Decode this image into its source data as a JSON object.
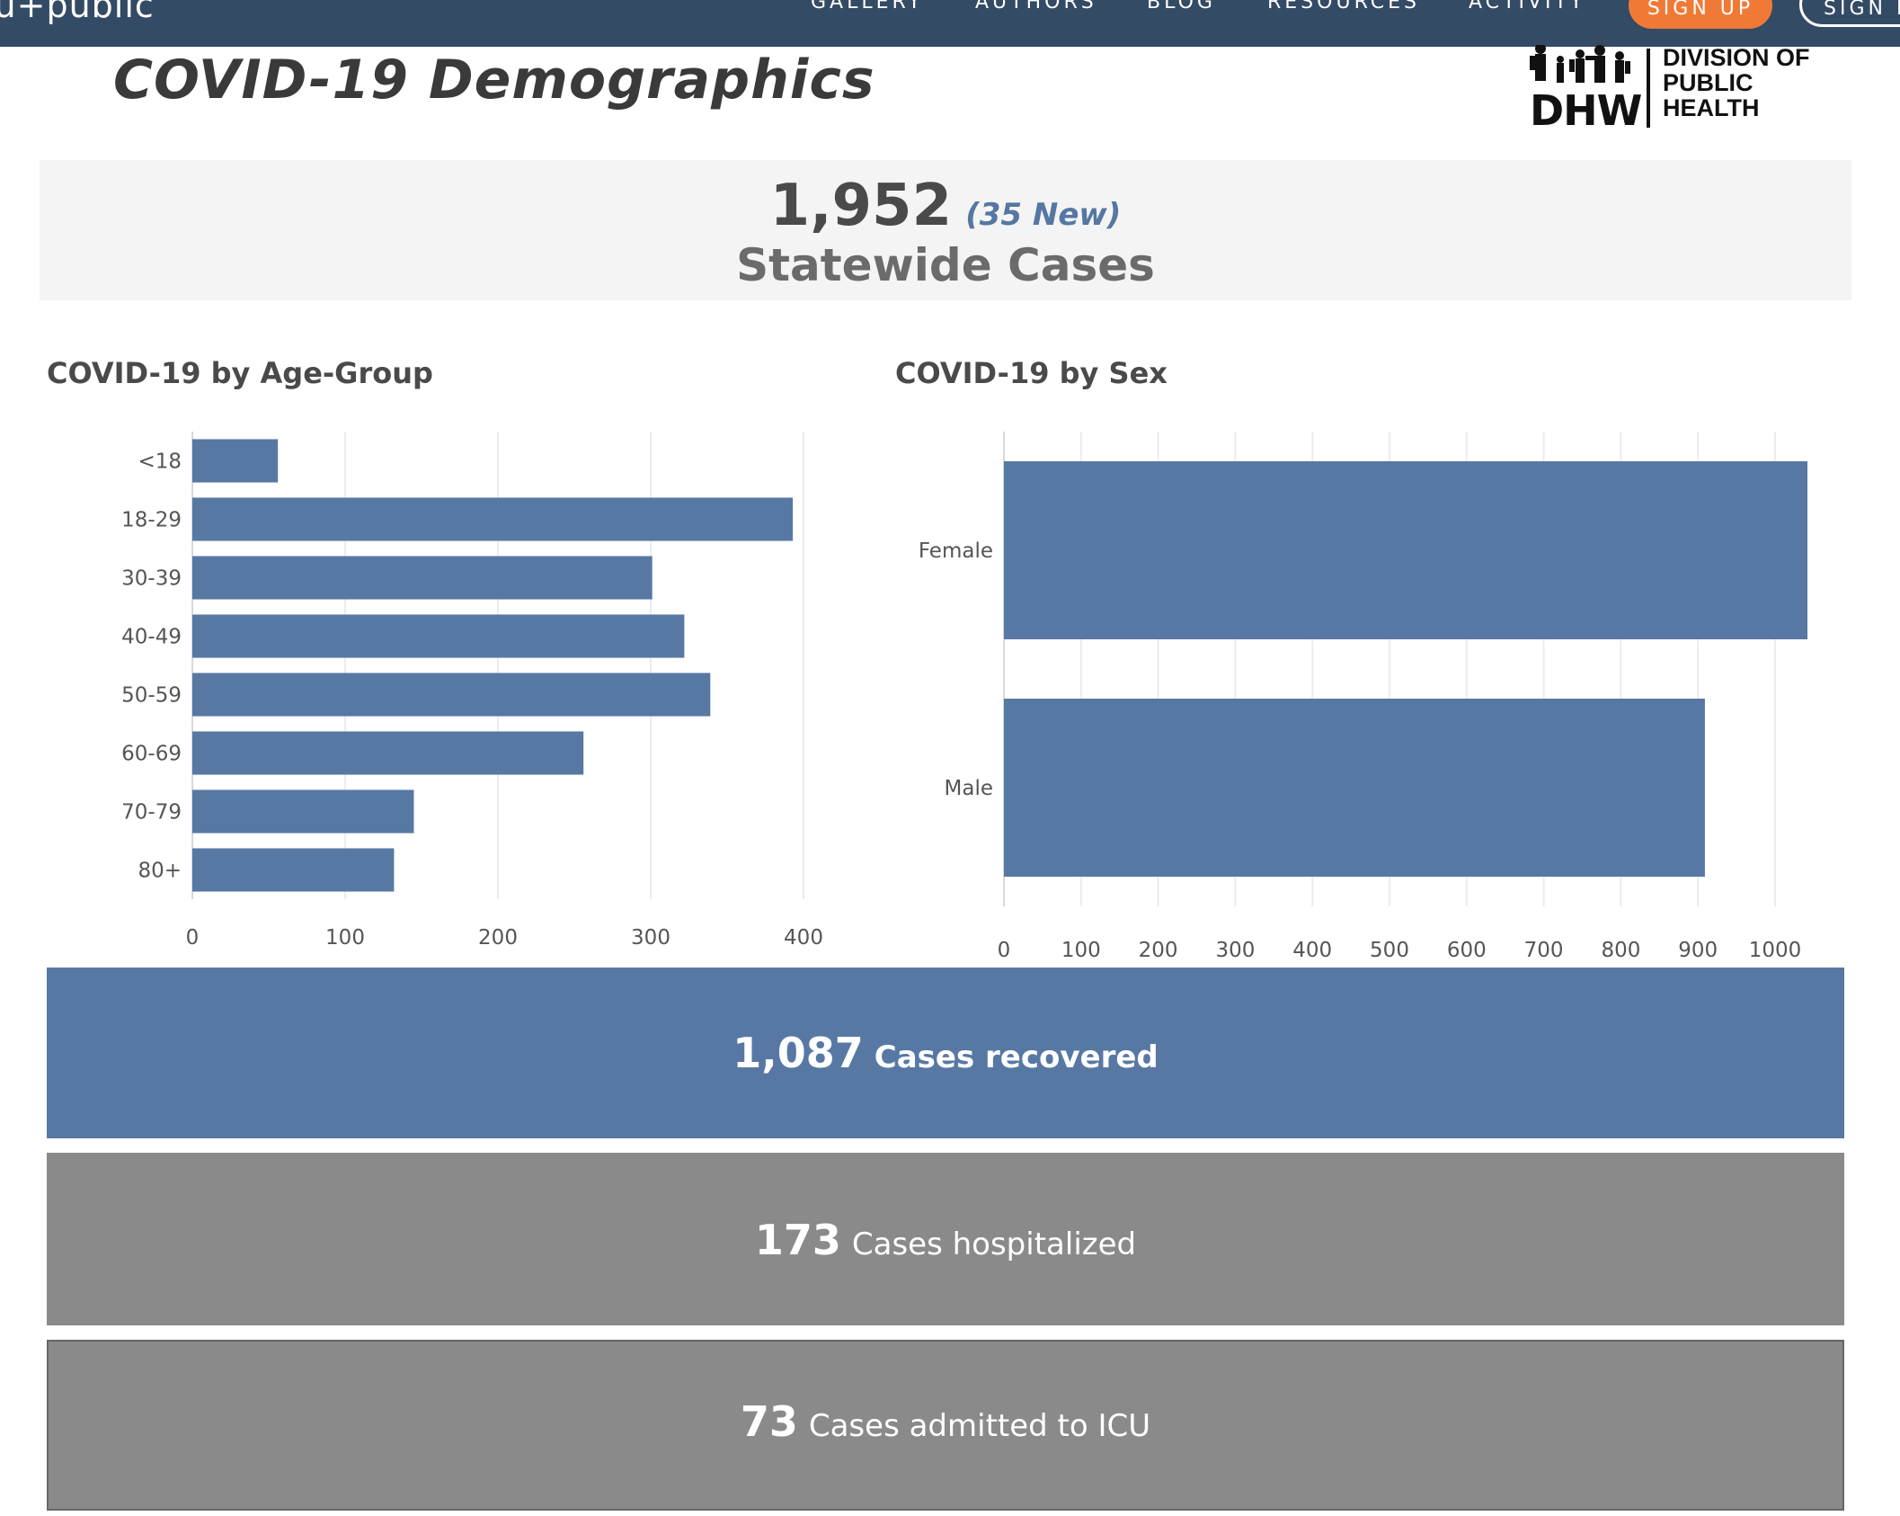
{
  "nav": {
    "brand": "iu+public",
    "links": [
      "GALLERY",
      "AUTHORS",
      "BLOG",
      "RESOURCES",
      "ACTIVITY"
    ],
    "signup": "SIGN UP",
    "signin": "SIGN I"
  },
  "header": {
    "title": "COVID-19 Demographics",
    "logo": {
      "mark": "DHW",
      "lines": [
        "DIVISION OF",
        "PUBLIC",
        "HEALTH"
      ]
    }
  },
  "statewide": {
    "total": "1,952",
    "new": "(35 New)",
    "label": "Statewide Cases"
  },
  "charts": {
    "age_title": "COVID-19 by Age-Group",
    "sex_title": "COVID-19 by Sex"
  },
  "chart_data": [
    {
      "type": "bar",
      "orientation": "horizontal",
      "title": "COVID-19 by Age-Group",
      "categories": [
        "<18",
        "18-29",
        "30-39",
        "40-49",
        "50-59",
        "60-69",
        "70-79",
        "80+"
      ],
      "values": [
        56,
        393,
        301,
        322,
        339,
        256,
        145,
        132
      ],
      "xlim": [
        0,
        400
      ],
      "x_ticks": [
        0,
        100,
        200,
        300,
        400
      ],
      "grid": true,
      "color": "#5878a4"
    },
    {
      "type": "bar",
      "orientation": "horizontal",
      "title": "COVID-19 by Sex",
      "categories": [
        "Female",
        "Male"
      ],
      "values": [
        1042,
        909
      ],
      "xlim": [
        0,
        1000
      ],
      "x_ticks": [
        0,
        100,
        200,
        300,
        400,
        500,
        600,
        700,
        800,
        900,
        1000
      ],
      "grid": true,
      "color": "#5878a4"
    }
  ],
  "stats": {
    "recovered": {
      "value": "1,087",
      "label": "Cases recovered"
    },
    "hospitalized": {
      "value": "173",
      "label": "Cases hospitalized"
    },
    "icu": {
      "value": "73",
      "label": "Cases admitted to ICU"
    }
  },
  "colors": {
    "nav_bg": "#344b65",
    "accent": "#f07a35",
    "bar": "#5878a4",
    "gray_box": "#8a8a8a"
  }
}
